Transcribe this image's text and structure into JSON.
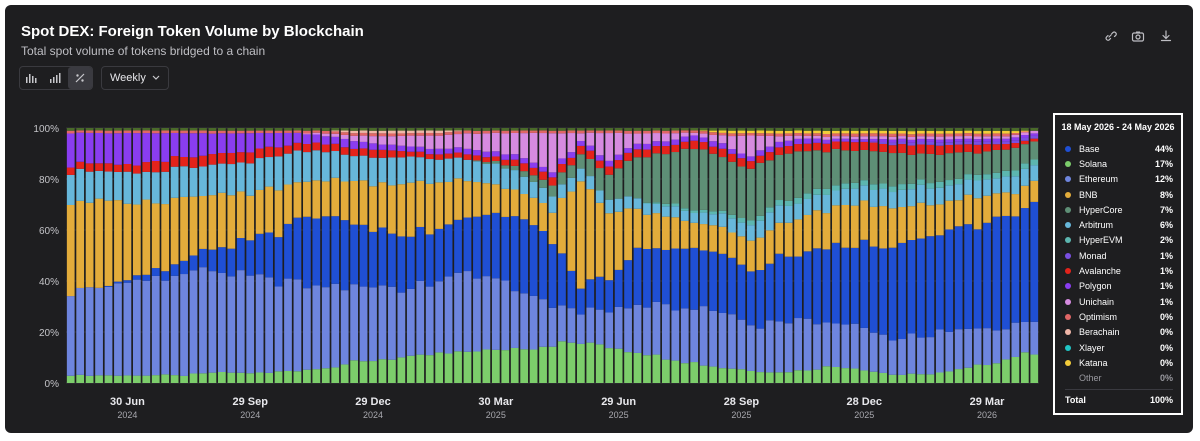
{
  "header": {
    "title": "Spot DEX: Foreign Token Volume by Blockchain",
    "subtitle": "Total spot volume of tokens bridged to a chain"
  },
  "toolbar": {
    "view_buttons": [
      "bar-chart-icon",
      "bar-chart-alt-icon",
      "percent-icon"
    ],
    "interval": "Weekly"
  },
  "top_icons": [
    "link-icon",
    "camera-icon",
    "download-icon"
  ],
  "colors": {
    "Base": "#1f4fd4",
    "Solana": "#7ccd6b",
    "Ethereum": "#6e85de",
    "BNB": "#e3ac3b",
    "HyperCore": "#5e8f76",
    "Arbitrum": "#67b7da",
    "HyperEVM": "#5cb6b0",
    "Monad": "#7a4fe0",
    "Avalanche": "#e3231b",
    "Polygon": "#8a3df0",
    "Unichain": "#d68be0",
    "Optimism": "#e06666",
    "Berachain": "#f0b6a8",
    "Xlayer": "#20c5c5",
    "Katana": "#f3cc3a",
    "Other": "#4a6a2a"
  },
  "tooltip": {
    "range": "18 May 2026 - 24 May 2026",
    "rows": [
      {
        "name": "Base",
        "pct": "44%"
      },
      {
        "name": "Solana",
        "pct": "17%"
      },
      {
        "name": "Ethereum",
        "pct": "12%"
      },
      {
        "name": "BNB",
        "pct": "8%"
      },
      {
        "name": "HyperCore",
        "pct": "7%"
      },
      {
        "name": "Arbitrum",
        "pct": "6%"
      },
      {
        "name": "HyperEVM",
        "pct": "2%"
      },
      {
        "name": "Monad",
        "pct": "1%"
      },
      {
        "name": "Avalanche",
        "pct": "1%"
      },
      {
        "name": "Polygon",
        "pct": "1%"
      },
      {
        "name": "Unichain",
        "pct": "1%"
      },
      {
        "name": "Optimism",
        "pct": "0%"
      },
      {
        "name": "Berachain",
        "pct": "0%"
      },
      {
        "name": "Xlayer",
        "pct": "0%"
      },
      {
        "name": "Katana",
        "pct": "0%"
      },
      {
        "name": "Other",
        "pct": "0%"
      }
    ],
    "total_label": "Total",
    "total_value": "100%"
  },
  "chart_data": {
    "type": "bar",
    "stacked": true,
    "normalized": true,
    "title": "Spot DEX: Foreign Token Volume by Blockchain",
    "subtitle": "Total spot volume of tokens bridged to a chain",
    "ylim": [
      0,
      100
    ],
    "y_ticks": [
      "0%",
      "20%",
      "40%",
      "60%",
      "80%",
      "100%"
    ],
    "x_ticks": [
      {
        "day": "30 Jun",
        "year": "2024",
        "week": 6
      },
      {
        "day": "29 Sep",
        "year": "2024",
        "week": 19
      },
      {
        "day": "29 Dec",
        "year": "2024",
        "week": 32
      },
      {
        "day": "30 Mar",
        "year": "2025",
        "week": 45
      },
      {
        "day": "29 Jun",
        "year": "2025",
        "week": 58
      },
      {
        "day": "28 Sep",
        "year": "2025",
        "week": 71
      },
      {
        "day": "28 Dec",
        "year": "2025",
        "week": 84
      },
      {
        "day": "29 Mar",
        "year": "2026",
        "week": 97
      }
    ],
    "week_count": 103,
    "grid": true,
    "stack_order": [
      "Solana",
      "Ethereum",
      "Base",
      "BNB",
      "Arbitrum",
      "HyperEVM",
      "HyperCore",
      "Avalanche",
      "Monad",
      "Polygon",
      "Unichain",
      "Optimism",
      "Berachain",
      "Xlayer",
      "Katana",
      "Other"
    ],
    "series": [
      {
        "name": "Solana",
        "values": [
          3,
          3,
          3,
          3,
          3,
          4,
          4,
          4,
          5,
          6,
          8,
          9,
          10,
          11,
          12,
          13,
          14,
          15,
          15,
          14,
          12,
          10,
          8,
          6,
          5,
          4,
          5,
          6,
          5,
          3,
          3,
          4,
          6,
          9,
          11
        ]
      },
      {
        "name": "Ethereum",
        "values": [
          32,
          35,
          36,
          38,
          40,
          40,
          38,
          36,
          34,
          32,
          30,
          28,
          26,
          28,
          30,
          28,
          22,
          15,
          12,
          14,
          18,
          20,
          22,
          22,
          18,
          20,
          18,
          16,
          15,
          13,
          14,
          14,
          13,
          12,
          12
        ]
      },
      {
        "name": "Base",
        "values": [
          0,
          0,
          1,
          3,
          5,
          8,
          12,
          18,
          25,
          28,
          25,
          22,
          20,
          20,
          22,
          25,
          28,
          25,
          10,
          12,
          20,
          22,
          24,
          22,
          20,
          24,
          25,
          28,
          30,
          32,
          34,
          36,
          38,
          40,
          44
        ]
      },
      {
        "name": "BNB",
        "values": [
          36,
          33,
          30,
          27,
          25,
          22,
          20,
          18,
          15,
          14,
          16,
          18,
          20,
          18,
          15,
          12,
          10,
          12,
          38,
          25,
          15,
          12,
          10,
          10,
          12,
          12,
          14,
          14,
          15,
          14,
          12,
          10,
          10,
          9,
          8
        ]
      },
      {
        "name": "Arbitrum",
        "values": [
          12,
          12,
          12,
          12,
          12,
          12,
          12,
          12,
          12,
          11,
          10,
          10,
          10,
          9,
          8,
          8,
          7,
          6,
          5,
          5,
          4,
          4,
          4,
          5,
          6,
          7,
          6,
          6,
          6,
          6,
          6,
          6,
          6,
          6,
          6
        ]
      },
      {
        "name": "HyperEVM",
        "values": [
          0,
          0,
          0,
          0,
          0,
          0,
          0,
          0,
          0,
          0,
          0,
          0,
          0,
          0,
          0,
          0,
          0,
          0,
          0,
          0,
          0,
          1,
          1,
          1,
          2,
          2,
          2,
          2,
          2,
          2,
          2,
          2,
          2,
          2,
          2
        ]
      },
      {
        "name": "HyperCore",
        "values": [
          0,
          0,
          0,
          0,
          0,
          0,
          0,
          0,
          0,
          0,
          0,
          0,
          0,
          0,
          0,
          1,
          2,
          4,
          5,
          10,
          15,
          20,
          24,
          22,
          20,
          18,
          16,
          13,
          12,
          11,
          10,
          9,
          8,
          8,
          7
        ]
      },
      {
        "name": "Avalanche",
        "values": [
          3,
          3,
          3,
          4,
          4,
          4,
          4,
          4,
          3,
          3,
          3,
          3,
          2,
          2,
          2,
          2,
          3,
          3,
          3,
          3,
          3,
          3,
          3,
          3,
          3,
          3,
          3,
          3,
          3,
          3,
          3,
          3,
          3,
          2,
          1
        ]
      },
      {
        "name": "Monad",
        "values": [
          0,
          0,
          0,
          0,
          0,
          0,
          0,
          0,
          0,
          0,
          0,
          0,
          0,
          0,
          0,
          0,
          0,
          0,
          0,
          0,
          0,
          0,
          0,
          0,
          0,
          0,
          0,
          0,
          0,
          1,
          1,
          1,
          1,
          1,
          1
        ]
      },
      {
        "name": "Polygon",
        "values": [
          12,
          12,
          13,
          11,
          9,
          8,
          8,
          6,
          4,
          3,
          3,
          2,
          2,
          2,
          2,
          2,
          2,
          2,
          2,
          2,
          2,
          2,
          2,
          2,
          2,
          2,
          2,
          1,
          1,
          1,
          1,
          1,
          1,
          1,
          1
        ]
      },
      {
        "name": "Unichain",
        "values": [
          0,
          0,
          0,
          0,
          0,
          0,
          0,
          0,
          0,
          1,
          2,
          3,
          4,
          5,
          6,
          7,
          10,
          14,
          3,
          10,
          4,
          3,
          1,
          3,
          8,
          2,
          1,
          1,
          1,
          1,
          1,
          1,
          1,
          1,
          1
        ]
      },
      {
        "name": "Optimism",
        "values": [
          1,
          1,
          1,
          1,
          1,
          1,
          1,
          1,
          1,
          1,
          1,
          1,
          1,
          1,
          1,
          1,
          1,
          1,
          1,
          1,
          1,
          1,
          1,
          1,
          1,
          1,
          1,
          1,
          1,
          1,
          1,
          1,
          1,
          1,
          0
        ]
      },
      {
        "name": "Berachain",
        "values": [
          0,
          0,
          0,
          0,
          0,
          0,
          0,
          0,
          0,
          0,
          1,
          1,
          1,
          1,
          0,
          0,
          0,
          0,
          0,
          0,
          0,
          0,
          0,
          0,
          0,
          0,
          0,
          0,
          0,
          0,
          0,
          0,
          0,
          0,
          0
        ]
      },
      {
        "name": "Xlayer",
        "values": [
          0,
          0,
          0,
          0,
          0,
          0,
          0,
          0,
          0,
          0,
          0,
          0,
          0,
          0,
          0,
          0,
          0,
          0,
          0,
          0,
          0,
          0,
          0,
          0,
          0,
          0,
          0,
          0,
          0,
          0,
          0,
          0,
          0,
          0,
          0
        ]
      },
      {
        "name": "Katana",
        "values": [
          0,
          0,
          0,
          0,
          0,
          0,
          0,
          0,
          0,
          0,
          0,
          0,
          0,
          0,
          0,
          0,
          0,
          0,
          0,
          0,
          0,
          0,
          0,
          1,
          1,
          1,
          1,
          1,
          1,
          1,
          1,
          1,
          1,
          1,
          0
        ]
      },
      {
        "name": "Other",
        "values": [
          1,
          1,
          1,
          1,
          1,
          1,
          1,
          1,
          1,
          1,
          1,
          1,
          1,
          1,
          1,
          1,
          1,
          1,
          1,
          1,
          1,
          1,
          1,
          1,
          1,
          1,
          1,
          1,
          1,
          1,
          1,
          1,
          1,
          1,
          1
        ]
      }
    ]
  }
}
